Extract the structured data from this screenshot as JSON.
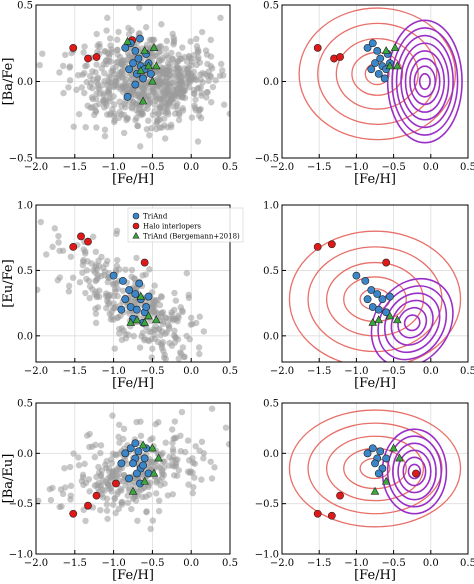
{
  "figure": {
    "legend": {
      "entries": [
        {
          "label": "TriAnd",
          "marker": "circle",
          "color": "#3a86c8"
        },
        {
          "label": "Halo interlopers",
          "marker": "circle",
          "color": "#e01818"
        },
        {
          "label": "TriAnd (Bergemann+2018)",
          "marker": "triangle",
          "color": "#3aa83a"
        }
      ],
      "placement": "top-left of middle-left panel"
    },
    "colors": {
      "background_points": "#9a9a9a",
      "triand": "#3a86c8",
      "halo": "#e01818",
      "bergemann": "#3aa83a",
      "triand_contours": "#e8706a",
      "field_contours": "#9a2fc8",
      "grid": "#dddddd"
    }
  },
  "chart_data": [
    {
      "id": "ba_fe_scatter",
      "type": "scatter",
      "xlabel": "[Fe/H]",
      "ylabel": "[Ba/Fe]",
      "xlim": [
        -2.0,
        0.5
      ],
      "ylim": [
        -0.5,
        0.5
      ],
      "xticks": [
        "−2.0",
        "−1.5",
        "−1.0",
        "−0.5",
        "0.0",
        "0.5"
      ],
      "yticks": [
        "−0.5",
        "0.0",
        "0.5"
      ],
      "grid": true,
      "background_field": true,
      "triand": [
        [
          -0.85,
          0.22
        ],
        [
          -0.78,
          0.25
        ],
        [
          -0.72,
          0.2
        ],
        [
          -0.68,
          0.15
        ],
        [
          -0.75,
          0.12
        ],
        [
          -0.65,
          0.1
        ],
        [
          -0.7,
          0.05
        ],
        [
          -0.6,
          0.08
        ],
        [
          -0.55,
          0.12
        ],
        [
          -0.8,
          0.08
        ],
        [
          -0.62,
          0.02
        ],
        [
          -0.58,
          0.18
        ],
        [
          -0.72,
          -0.02
        ],
        [
          -0.82,
          -0.1
        ],
        [
          -0.66,
          0.28
        ],
        [
          -0.52,
          0.05
        ]
      ],
      "halo": [
        [
          -1.52,
          0.22
        ],
        [
          -1.33,
          0.15
        ],
        [
          -1.22,
          0.16
        ],
        [
          -0.76,
          0.27
        ]
      ],
      "bergemann": [
        [
          -0.6,
          0.2
        ],
        [
          -0.48,
          0.22
        ],
        [
          -0.55,
          0.1
        ],
        [
          -0.45,
          0.1
        ],
        [
          -0.62,
          -0.13
        ],
        [
          -0.82,
          0.26
        ],
        [
          -0.5,
          0.0
        ],
        [
          -0.65,
          0.07
        ]
      ]
    },
    {
      "id": "ba_fe_contour",
      "type": "scatter",
      "xlabel": "[Fe/H]",
      "ylabel": "",
      "xlim": [
        -2.0,
        0.5
      ],
      "ylim": [
        -0.5,
        0.5
      ],
      "xticks": [
        "−2.0",
        "−1.5",
        "−1.0",
        "−0.5",
        "0.0",
        "0.5"
      ],
      "yticks": [
        "−0.5",
        "0.0",
        "0.5"
      ],
      "grid": true,
      "contours": {
        "triand": {
          "center": [
            -0.72,
            0.05
          ],
          "rx": [
            0.16,
            0.34,
            0.55,
            0.8,
            1.05
          ],
          "ry": [
            0.07,
            0.14,
            0.23,
            0.33,
            0.43
          ]
        },
        "field": {
          "center": [
            -0.08,
            0.0
          ],
          "rx": [
            0.07,
            0.14,
            0.2,
            0.26,
            0.32,
            0.38,
            0.44,
            0.5
          ],
          "ry": [
            0.05,
            0.1,
            0.15,
            0.2,
            0.25,
            0.3,
            0.35,
            0.4
          ]
        }
      },
      "triand": [
        [
          -0.85,
          0.22
        ],
        [
          -0.78,
          0.25
        ],
        [
          -0.72,
          0.2
        ],
        [
          -0.68,
          0.15
        ],
        [
          -0.75,
          0.12
        ],
        [
          -0.65,
          0.1
        ],
        [
          -0.7,
          0.05
        ],
        [
          -0.6,
          0.08
        ],
        [
          -0.55,
          0.12
        ],
        [
          -0.8,
          0.08
        ],
        [
          -0.62,
          0.02
        ],
        [
          -0.58,
          0.18
        ]
      ],
      "halo": [
        [
          -1.52,
          0.22
        ],
        [
          -1.3,
          0.15
        ],
        [
          -1.22,
          0.16
        ]
      ],
      "bergemann": [
        [
          -0.6,
          0.2
        ],
        [
          -0.48,
          0.22
        ],
        [
          -0.55,
          0.1
        ],
        [
          -0.45,
          0.1
        ]
      ]
    },
    {
      "id": "eu_fe_scatter",
      "type": "scatter",
      "xlabel": "[Fe/H]",
      "ylabel": "[Eu/Fe]",
      "xlim": [
        -2.0,
        0.5
      ],
      "ylim": [
        -0.2,
        1.0
      ],
      "xticks": [
        "−2.0",
        "−1.5",
        "−1.0",
        "−0.5",
        "0.0",
        "0.5"
      ],
      "yticks": [
        "0.0",
        "0.5",
        "1.0"
      ],
      "grid": true,
      "background_field": true,
      "triand": [
        [
          -1.0,
          0.46
        ],
        [
          -0.88,
          0.42
        ],
        [
          -0.8,
          0.35
        ],
        [
          -0.72,
          0.32
        ],
        [
          -0.65,
          0.28
        ],
        [
          -0.78,
          0.22
        ],
        [
          -0.7,
          0.2
        ],
        [
          -0.6,
          0.18
        ],
        [
          -0.85,
          0.28
        ],
        [
          -0.55,
          0.3
        ],
        [
          -0.62,
          0.1
        ],
        [
          -0.75,
          0.13
        ],
        [
          -0.67,
          0.4
        ],
        [
          -0.9,
          0.2
        ],
        [
          -0.58,
          0.22
        ]
      ],
      "halo": [
        [
          -1.52,
          0.68
        ],
        [
          -1.42,
          0.76
        ],
        [
          -1.33,
          0.72
        ],
        [
          -0.6,
          0.56
        ]
      ],
      "bergemann": [
        [
          -0.7,
          0.12
        ],
        [
          -0.6,
          0.1
        ],
        [
          -0.55,
          0.15
        ],
        [
          -0.45,
          0.12
        ],
        [
          -0.78,
          0.1
        ],
        [
          -0.65,
          0.3
        ]
      ]
    },
    {
      "id": "eu_fe_contour",
      "type": "scatter",
      "xlabel": "[Fe/H]",
      "ylabel": "",
      "xlim": [
        -2.0,
        0.5
      ],
      "ylim": [
        -0.2,
        1.0
      ],
      "xticks": [
        "−2.0",
        "−1.5",
        "−1.0",
        "−0.5",
        "0.0",
        "0.5"
      ],
      "yticks": [
        "0.0",
        "0.5",
        "1.0"
      ],
      "grid": true,
      "contours": {
        "triand": {
          "center": [
            -0.75,
            0.28
          ],
          "rx": [
            0.2,
            0.42,
            0.65,
            0.9,
            1.15
          ],
          "ry": [
            0.08,
            0.17,
            0.28,
            0.4,
            0.52
          ]
        },
        "field": {
          "center": [
            -0.25,
            0.1
          ],
          "rx": [
            0.1,
            0.18,
            0.26,
            0.34,
            0.42,
            0.5
          ],
          "ry": [
            0.06,
            0.12,
            0.18,
            0.24,
            0.3,
            0.36
          ]
        }
      },
      "triand": [
        [
          -1.0,
          0.46
        ],
        [
          -0.88,
          0.42
        ],
        [
          -0.8,
          0.35
        ],
        [
          -0.72,
          0.32
        ],
        [
          -0.65,
          0.28
        ],
        [
          -0.78,
          0.22
        ],
        [
          -0.7,
          0.2
        ],
        [
          -0.6,
          0.18
        ],
        [
          -0.85,
          0.28
        ],
        [
          -0.55,
          0.3
        ]
      ],
      "halo": [
        [
          -1.52,
          0.68
        ],
        [
          -1.33,
          0.7
        ],
        [
          -0.6,
          0.56
        ]
      ],
      "bergemann": [
        [
          -0.7,
          0.12
        ],
        [
          -0.55,
          0.15
        ],
        [
          -0.45,
          0.12
        ],
        [
          -0.78,
          0.1
        ]
      ]
    },
    {
      "id": "ba_eu_scatter",
      "type": "scatter",
      "xlabel": "[Fe/H]",
      "ylabel": "[Ba/Eu]",
      "xlim": [
        -2.0,
        0.5
      ],
      "ylim": [
        -1.0,
        0.5
      ],
      "xticks": [
        "−2.0",
        "−1.5",
        "−1.0",
        "−0.5",
        "0.0",
        "0.5"
      ],
      "yticks": [
        "−1.0",
        "−0.5",
        "0.0",
        "0.5"
      ],
      "grid": true,
      "background_field": true,
      "triand": [
        [
          -0.85,
          0.0
        ],
        [
          -0.78,
          0.05
        ],
        [
          -0.72,
          -0.05
        ],
        [
          -0.68,
          0.02
        ],
        [
          -0.75,
          -0.1
        ],
        [
          -0.65,
          -0.15
        ],
        [
          -0.7,
          -0.2
        ],
        [
          -0.6,
          -0.05
        ],
        [
          -0.8,
          -0.25
        ],
        [
          -0.62,
          -0.12
        ],
        [
          -0.9,
          -0.1
        ],
        [
          -0.58,
          0.05
        ],
        [
          -0.72,
          0.1
        ],
        [
          -0.55,
          -0.2
        ],
        [
          -0.66,
          -0.3
        ]
      ],
      "halo": [
        [
          -1.52,
          -0.6
        ],
        [
          -1.33,
          -0.52
        ],
        [
          -1.22,
          -0.42
        ],
        [
          -0.97,
          -0.3
        ]
      ],
      "bergemann": [
        [
          -0.5,
          0.05
        ],
        [
          -0.42,
          -0.05
        ],
        [
          -0.6,
          -0.28
        ],
        [
          -0.48,
          -0.2
        ],
        [
          -0.75,
          -0.38
        ],
        [
          -0.62,
          0.08
        ]
      ]
    },
    {
      "id": "ba_eu_contour",
      "type": "scatter",
      "xlabel": "[Fe/H]",
      "ylabel": "",
      "xlim": [
        -2.0,
        0.5
      ],
      "ylim": [
        -1.0,
        0.5
      ],
      "xticks": [
        "−2.0",
        "−1.5",
        "−1.0",
        "−0.5",
        "0.0",
        "0.5"
      ],
      "yticks": [
        "−1.0",
        "−0.5",
        "0.0",
        "0.5"
      ],
      "grid": true,
      "contours": {
        "triand": {
          "center": [
            -0.75,
            -0.15
          ],
          "rx": [
            0.2,
            0.42,
            0.65,
            0.9,
            1.15
          ],
          "ry": [
            0.1,
            0.2,
            0.32,
            0.45,
            0.58
          ]
        },
        "field": {
          "center": [
            -0.22,
            -0.18
          ],
          "rx": [
            0.08,
            0.15,
            0.22,
            0.29,
            0.36,
            0.43
          ],
          "ry": [
            0.07,
            0.14,
            0.21,
            0.28,
            0.35,
            0.42
          ]
        }
      },
      "triand": [
        [
          -0.85,
          0.0
        ],
        [
          -0.78,
          0.05
        ],
        [
          -0.72,
          -0.05
        ],
        [
          -0.68,
          0.02
        ],
        [
          -0.75,
          -0.1
        ],
        [
          -0.65,
          -0.15
        ],
        [
          -0.7,
          -0.2
        ],
        [
          -0.6,
          -0.05
        ]
      ],
      "halo": [
        [
          -1.52,
          -0.6
        ],
        [
          -1.33,
          -0.62
        ],
        [
          -1.22,
          -0.42
        ],
        [
          -0.2,
          -0.2
        ]
      ],
      "bergemann": [
        [
          -0.5,
          0.05
        ],
        [
          -0.42,
          -0.05
        ],
        [
          -0.6,
          -0.28
        ],
        [
          -0.75,
          -0.38
        ]
      ]
    }
  ]
}
